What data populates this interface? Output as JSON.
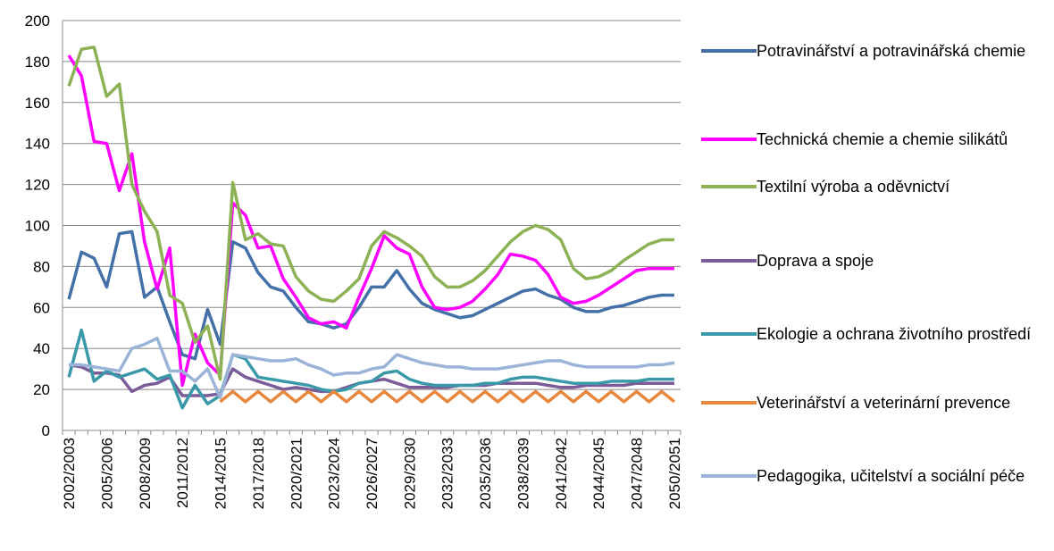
{
  "chart_data": {
    "type": "line",
    "categories": [
      "2002/2003",
      null,
      null,
      "2005/2006",
      null,
      null,
      "2008/2009",
      null,
      null,
      "2011/2012",
      null,
      null,
      "2014/2015",
      null,
      null,
      "2017/2018",
      null,
      null,
      "2020/2021",
      null,
      null,
      "2023/2024",
      null,
      null,
      "2026/2027",
      null,
      null,
      "2029/2030",
      null,
      null,
      "2032/2033",
      null,
      null,
      "2035/2036",
      null,
      null,
      "2038/2039",
      null,
      null,
      "2041/2042",
      null,
      null,
      "2044/2045",
      null,
      null,
      "2047/2048",
      null,
      null,
      "2050/2051"
    ],
    "ylim": [
      0,
      200
    ],
    "yticks": [
      0,
      20,
      40,
      60,
      80,
      100,
      120,
      140,
      160,
      180,
      200
    ],
    "grid": true,
    "legend": "right",
    "series": [
      {
        "name": "Potravinářství a potravinářská chemie",
        "color": "#4470a8",
        "values": [
          64,
          87,
          84,
          70,
          96,
          97,
          65,
          70,
          53,
          37,
          35,
          59,
          42,
          92,
          89,
          77,
          70,
          68,
          60,
          53,
          52,
          50,
          52,
          60,
          70,
          70,
          78,
          69,
          62,
          59,
          57,
          55,
          56,
          59,
          62,
          65,
          68,
          69,
          66,
          64,
          60,
          58,
          58,
          60,
          61,
          63,
          65,
          66,
          66
        ]
      },
      {
        "name": "Technická chemie a chemie silikátů",
        "color": "#ff00ff",
        "values": [
          183,
          173,
          141,
          140,
          117,
          135,
          92,
          69,
          89,
          22,
          47,
          33,
          27,
          111,
          105,
          89,
          90,
          74,
          65,
          55,
          52,
          53,
          50,
          65,
          79,
          95,
          89,
          86,
          70,
          60,
          59,
          60,
          63,
          69,
          76,
          86,
          85,
          83,
          76,
          65,
          62,
          63,
          66,
          70,
          74,
          78,
          79,
          79,
          79
        ]
      },
      {
        "name": "Textilní výroba a oděvnictví",
        "color": "#8db255",
        "values": [
          168,
          186,
          187,
          163,
          169,
          120,
          107,
          97,
          66,
          62,
          43,
          51,
          25,
          121,
          93,
          96,
          91,
          90,
          75,
          68,
          64,
          63,
          68,
          74,
          90,
          97,
          94,
          90,
          85,
          75,
          70,
          70,
          73,
          78,
          85,
          92,
          97,
          100,
          98,
          93,
          79,
          74,
          75,
          78,
          83,
          87,
          91,
          93,
          93
        ]
      },
      {
        "name": "Doprava a spoje",
        "color": "#7b5c99",
        "values": [
          32,
          31,
          28,
          28,
          27,
          19,
          22,
          23,
          26,
          17,
          17,
          17,
          18,
          30,
          26,
          24,
          22,
          20,
          21,
          20,
          19,
          19,
          21,
          23,
          24,
          25,
          23,
          21,
          21,
          21,
          21,
          22,
          22,
          22,
          23,
          23,
          23,
          23,
          22,
          21,
          21,
          22,
          22,
          22,
          22,
          23,
          23,
          23,
          23
        ]
      },
      {
        "name": "Ekologie a ochrana životního prostředí",
        "color": "#3a99a8",
        "values": [
          26,
          49,
          24,
          29,
          26,
          28,
          30,
          25,
          27,
          11,
          22,
          13,
          17,
          37,
          35,
          26,
          25,
          24,
          23,
          22,
          20,
          19,
          20,
          23,
          24,
          28,
          29,
          25,
          23,
          22,
          22,
          22,
          22,
          23,
          23,
          25,
          26,
          26,
          25,
          24,
          23,
          23,
          23,
          24,
          24,
          24,
          25,
          25,
          25
        ]
      },
      {
        "name": "Veterinářství a veterinární prevence",
        "color": "#e8883f",
        "values": [
          null,
          null,
          null,
          null,
          null,
          null,
          null,
          null,
          null,
          null,
          null,
          null,
          14,
          19,
          14,
          19,
          14,
          19,
          14,
          19,
          14,
          19,
          14,
          19,
          14,
          19,
          14,
          19,
          14,
          19,
          14,
          19,
          14,
          19,
          14,
          19,
          14,
          19,
          14,
          19,
          14,
          19,
          14,
          19,
          14,
          19,
          14,
          19,
          14
        ]
      },
      {
        "name": "Pedagogika, učitelství a sociální péče",
        "color": "#9cb3d8",
        "values": [
          32,
          32,
          31,
          30,
          29,
          40,
          42,
          45,
          29,
          29,
          24,
          30,
          16,
          37,
          36,
          35,
          34,
          34,
          35,
          32,
          30,
          27,
          28,
          28,
          30,
          31,
          37,
          35,
          33,
          32,
          31,
          31,
          30,
          30,
          30,
          31,
          32,
          33,
          34,
          34,
          32,
          31,
          31,
          31,
          31,
          31,
          32,
          32,
          33
        ]
      }
    ]
  }
}
